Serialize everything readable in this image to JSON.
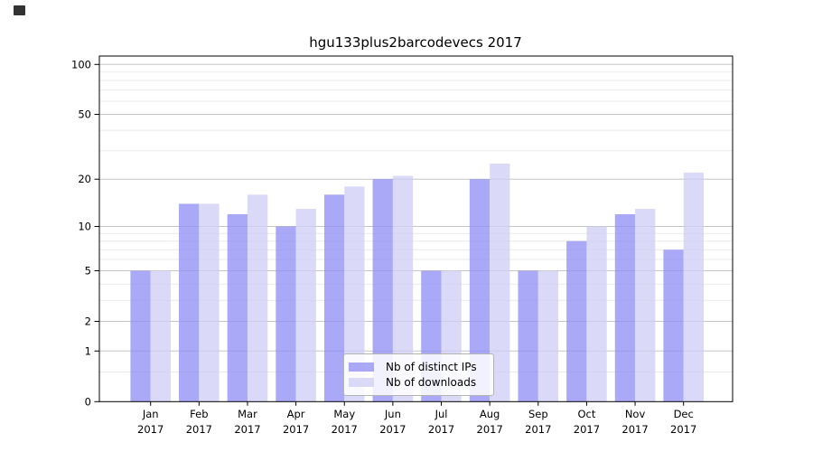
{
  "page": {
    "background": "#ffffff"
  },
  "chart_data": {
    "type": "bar",
    "title": "hgu133plus2barcodevecs 2017",
    "categories": [
      "Jan",
      "Feb",
      "Mar",
      "Apr",
      "May",
      "Jun",
      "Jul",
      "Aug",
      "Sep",
      "Oct",
      "Nov",
      "Dec"
    ],
    "year_label": "2017",
    "series": [
      {
        "name": "Nb of distinct IPs",
        "color": "rgba(140,140,244,0.75)",
        "apparent_color": "#a9a9f7",
        "values": [
          5,
          14,
          12,
          10,
          16,
          20,
          5,
          20,
          5,
          8,
          12,
          7
        ]
      },
      {
        "name": "Nb of downloads",
        "color": "rgba(206,206,246,0.75)",
        "apparent_color": "#dadaf8",
        "values": [
          5,
          14,
          16,
          13,
          18,
          21,
          5,
          25,
          5,
          10,
          13,
          22
        ]
      }
    ],
    "yscale": "log1p",
    "ylim": [
      0,
      112
    ],
    "yticks": [
      0,
      1,
      2,
      5,
      10,
      20,
      50,
      100
    ],
    "yticks_minor": [
      0.5,
      3,
      4,
      6,
      7,
      8,
      9,
      30,
      40,
      60,
      70,
      80,
      90
    ],
    "grid": "horizontal",
    "legend_position": "lower-center"
  },
  "colors": {
    "axis": "#000000",
    "grid_major": "#c6c6c6",
    "grid_minor": "#e9e9e9",
    "legend_border": "#b3b3b3"
  }
}
